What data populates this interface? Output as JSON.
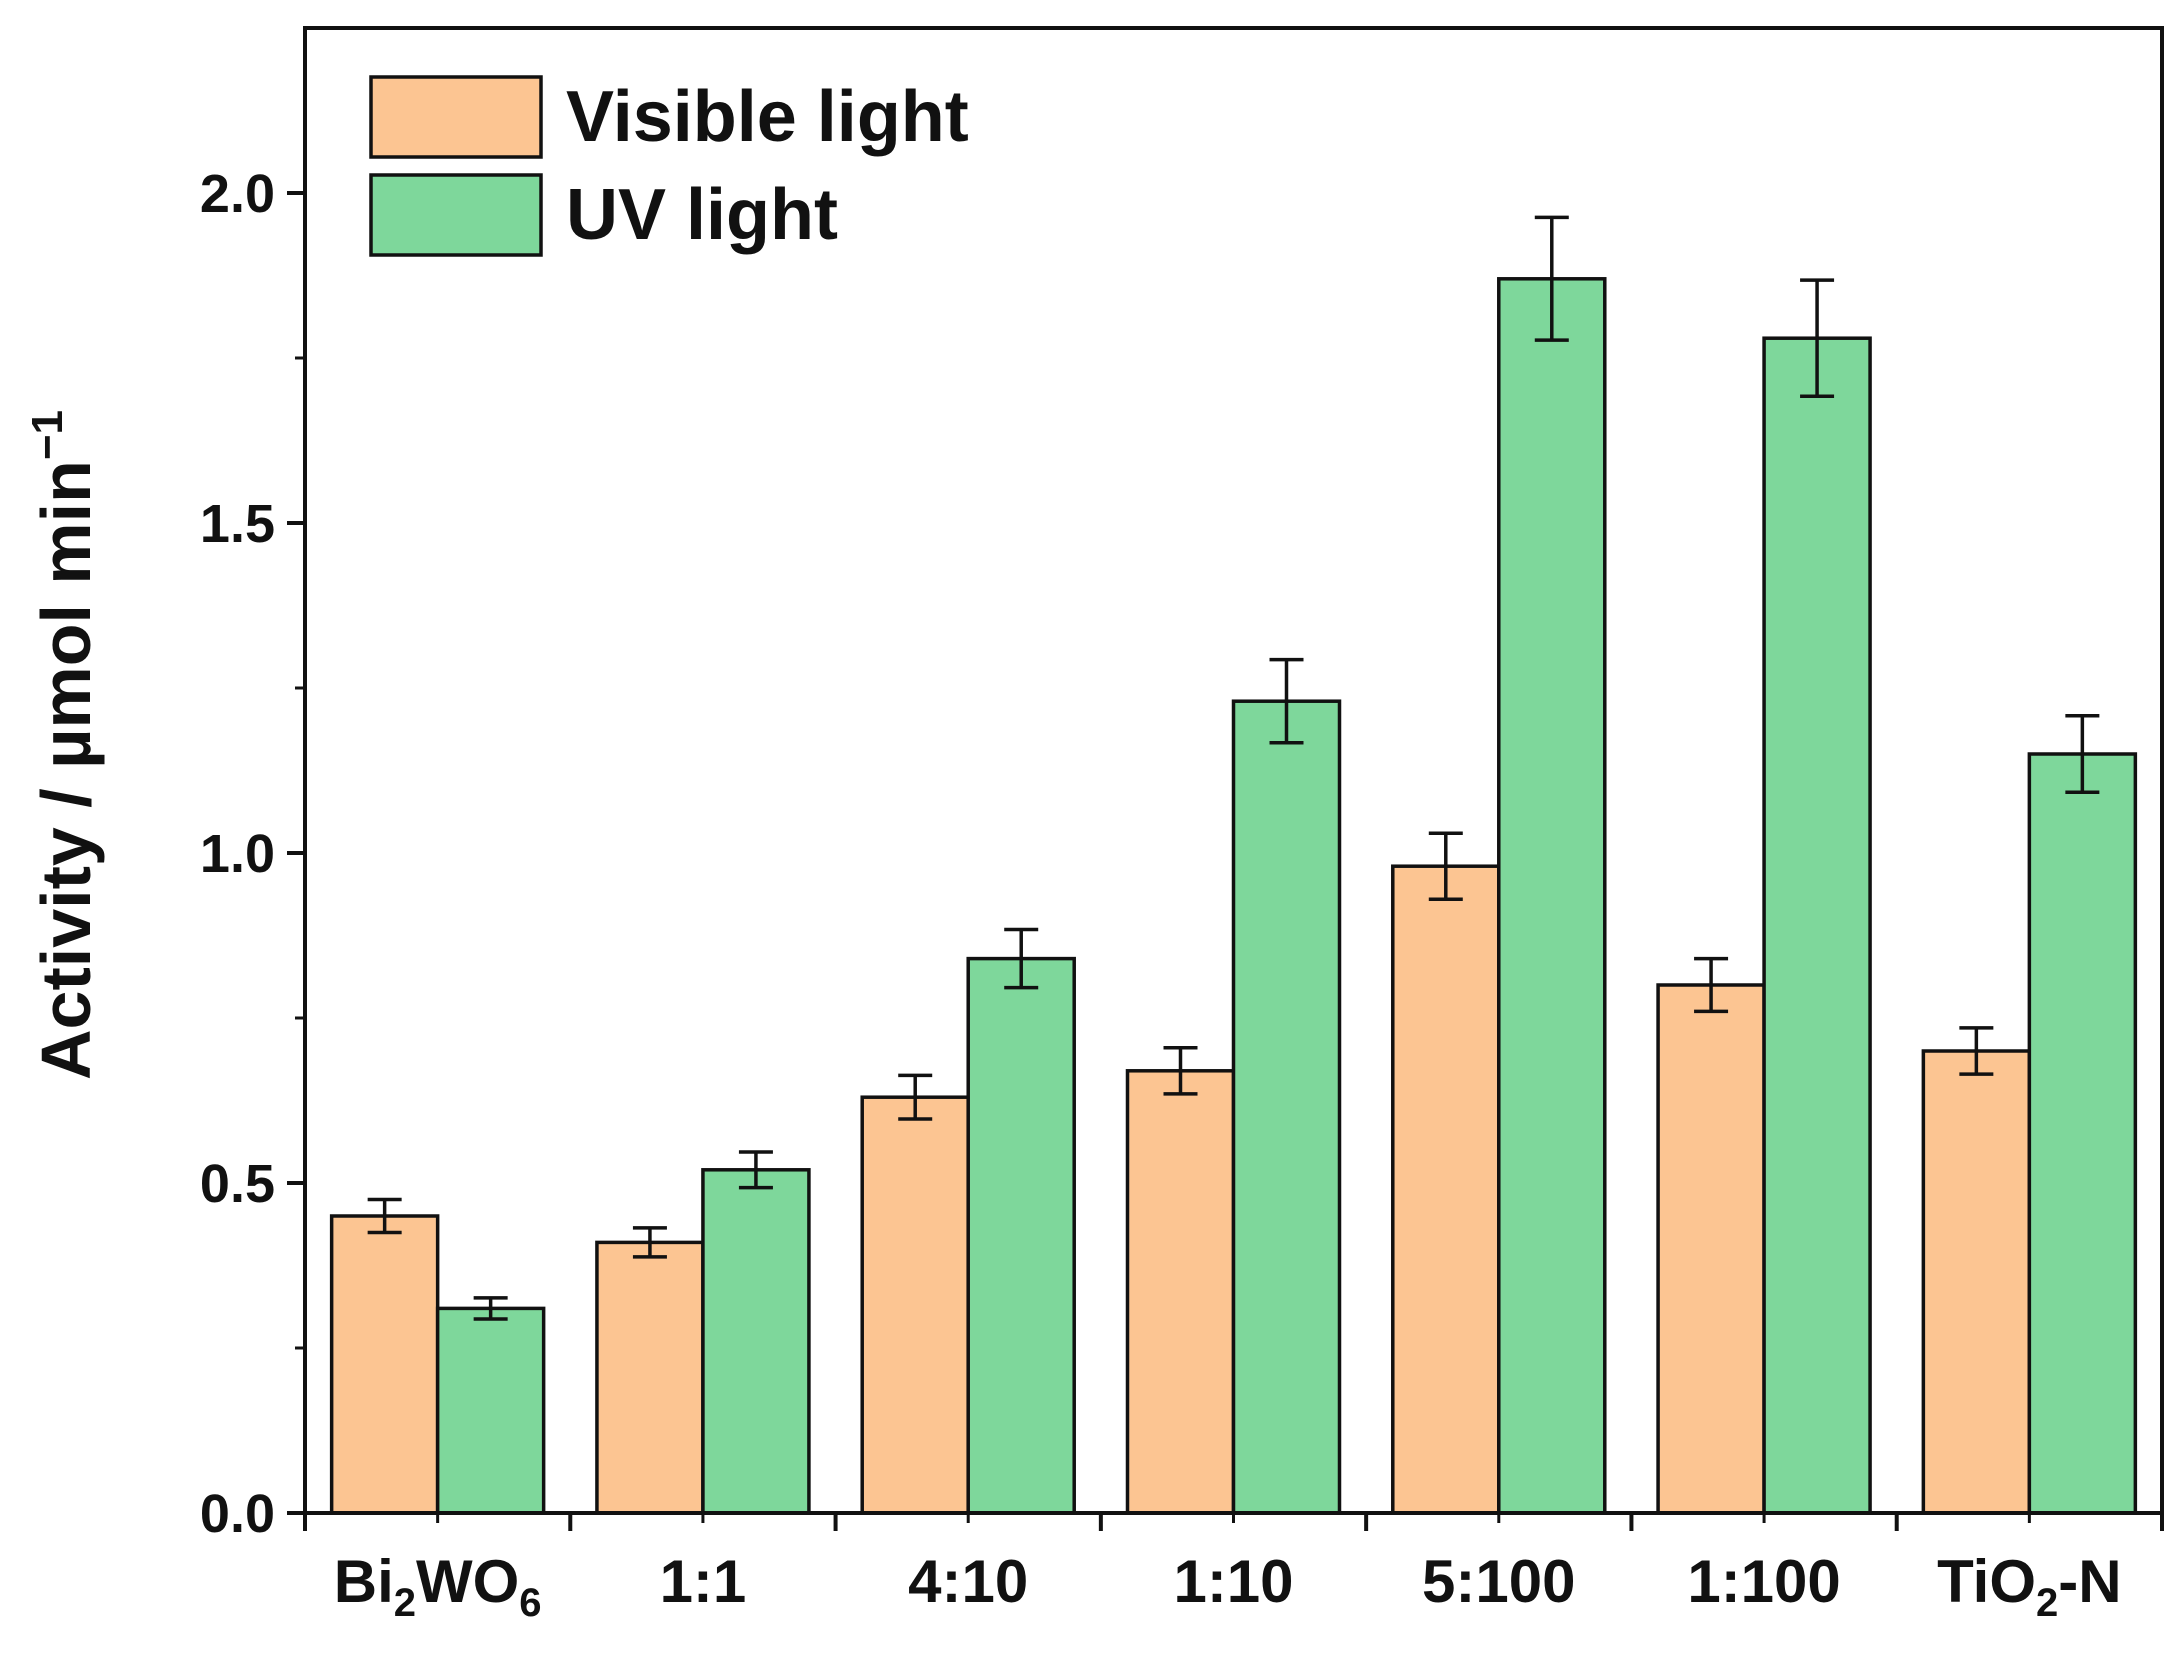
{
  "chart_data": {
    "type": "bar",
    "title": "",
    "xlabel": "",
    "ylabel": "Activity / µmol min",
    "ylabel_superscript": "−1",
    "ylim": [
      0,
      2.25
    ],
    "yticks": [
      0.0,
      0.5,
      1.0,
      1.5,
      2.0
    ],
    "ytick_labels": [
      "0.0",
      "0.5",
      "1.0",
      "1.5",
      "2.0"
    ],
    "grid": false,
    "legend_position": "top-left",
    "categories": [
      {
        "parts": [
          {
            "t": "Bi"
          },
          {
            "t": "2",
            "sub": true
          },
          {
            "t": "WO"
          },
          {
            "t": "6",
            "sub": true
          }
        ]
      },
      {
        "parts": [
          {
            "t": "1:1"
          }
        ]
      },
      {
        "parts": [
          {
            "t": "4:10"
          }
        ]
      },
      {
        "parts": [
          {
            "t": "1:10"
          }
        ]
      },
      {
        "parts": [
          {
            "t": "5:100"
          }
        ]
      },
      {
        "parts": [
          {
            "t": "1:100"
          }
        ]
      },
      {
        "parts": [
          {
            "t": "TiO"
          },
          {
            "t": "2",
            "sub": true
          },
          {
            "t": "-N"
          }
        ]
      }
    ],
    "series": [
      {
        "name": "Visible light",
        "color": "#FCC592",
        "values": [
          0.45,
          0.41,
          0.63,
          0.67,
          0.98,
          0.8,
          0.7
        ],
        "errors": [
          0.025,
          0.022,
          0.033,
          0.035,
          0.05,
          0.04,
          0.035
        ]
      },
      {
        "name": "UV light",
        "color": "#7ED79B",
        "values": [
          0.31,
          0.52,
          0.84,
          1.23,
          1.87,
          1.78,
          1.15
        ],
        "errors": [
          0.016,
          0.027,
          0.044,
          0.063,
          0.093,
          0.088,
          0.058
        ]
      }
    ]
  }
}
